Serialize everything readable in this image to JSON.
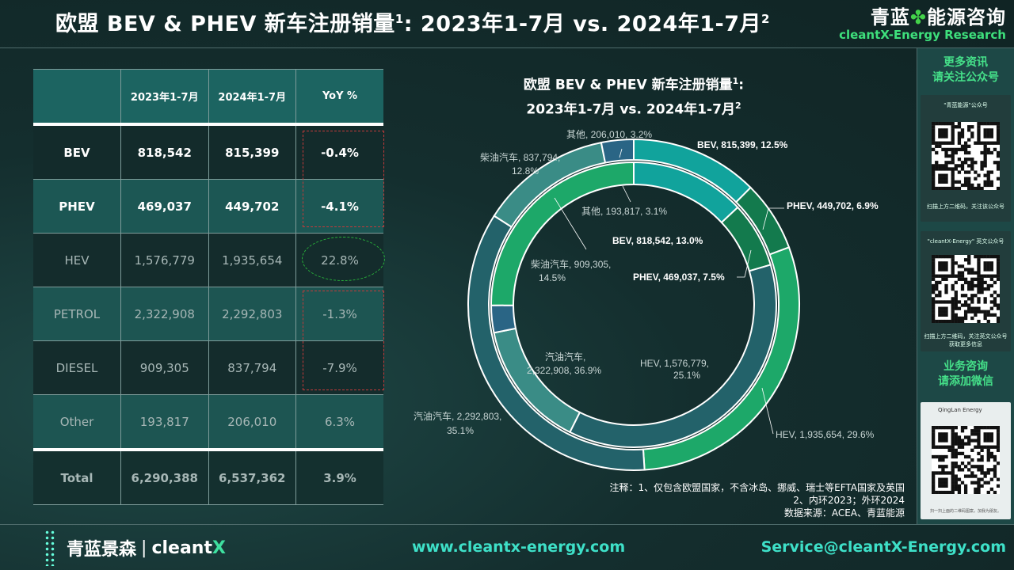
{
  "header": {
    "title_main": "欧盟 BEV & PHEV 新车注册销量",
    "title_sup": "1",
    "title_range": ": 2023年1-7月 vs. 2024年1-7月",
    "title_sup2": "2",
    "brand_cn_left": "青蓝",
    "brand_cn_right": "能源咨询",
    "brand_en": "cleantX-Energy Research"
  },
  "table": {
    "headers": [
      "",
      "2023年1-7月",
      "2024年1-7月",
      "YoY %"
    ],
    "rows": [
      [
        "BEV",
        "818,542",
        "815,399",
        "-0.4%"
      ],
      [
        "PHEV",
        "469,037",
        "449,702",
        "-4.1%"
      ],
      [
        "HEV",
        "1,576,779",
        "1,935,654",
        "22.8%"
      ],
      [
        "PETROL",
        "2,322,908",
        "2,292,803",
        "-1.3%"
      ],
      [
        "DIESEL",
        "909,305",
        "837,794",
        "-7.9%"
      ],
      [
        "Other",
        "193,817",
        "206,010",
        "6.3%"
      ],
      [
        "Total",
        "6,290,388",
        "6,537,362",
        "3.9%"
      ]
    ]
  },
  "chart_data": {
    "type": "pie",
    "title_line1": "欧盟 BEV & PHEV 新车注册销量",
    "title_line1_sup": "1",
    "title_line2": "2023年1-7月 vs. 2024年1-7月",
    "title_line2_sup": "2",
    "colors": [
      "#11a39c",
      "#137a4d",
      "#1da869",
      "#23626a",
      "#3a8c86",
      "#2a6585"
    ],
    "series": [
      {
        "ring": "inner",
        "categories": [
          "BEV",
          "PHEV",
          "汽油汽车",
          "柴油汽车",
          "其他",
          "HEV"
        ],
        "values": [
          818542,
          469037,
          2322908,
          909305,
          193817,
          1576779
        ],
        "percents": [
          13.0,
          7.5,
          36.9,
          14.5,
          3.1,
          25.1
        ]
      },
      {
        "ring": "outer",
        "categories": [
          "BEV",
          "PHEV",
          "HEV",
          "汽油汽车",
          "柴油汽车",
          "其他"
        ],
        "values": [
          815399,
          449702,
          1935654,
          2292803,
          837794,
          206010
        ],
        "percents": [
          12.5,
          6.9,
          29.6,
          35.1,
          12.8,
          3.2
        ]
      }
    ],
    "labels": {
      "outer_bev": "BEV, 815,399, 12.5%",
      "outer_phev": "PHEV, 449,702, 6.9%",
      "outer_hev": "HEV, 1,935,654, 29.6%",
      "outer_petrol_1": "汽油汽车, 2,292,803,",
      "outer_petrol_2": "35.1%",
      "outer_diesel_1": "柴油汽车, 837,794,",
      "outer_diesel_2": "12.8%",
      "outer_other": "其他, 206,010, 3.2%",
      "inner_bev": "BEV, 818,542, 13.0%",
      "inner_phev": "PHEV, 469,037, 7.5%",
      "inner_hev_1": "HEV,       1,576,779,",
      "inner_hev_2": "25.1%",
      "inner_petrol_1": "汽油汽车,",
      "inner_petrol_2": "2,322,908, 36.9%",
      "inner_diesel_1": "柴油汽车, 909,305,",
      "inner_diesel_2": "14.5%",
      "inner_other": "其他, 193,817, 3.1%"
    }
  },
  "notes": {
    "line1": "注释：1、仅包含欧盟国家，不含冰岛、挪威、瑞士等EFTA国家及英国",
    "line2": "2、内环2023；外环2024",
    "line3": "数据来源：ACEA、青蓝能源"
  },
  "sidebar": {
    "heading1_line1": "更多资讯",
    "heading1_line2": "请关注公众号",
    "card1_caption": "\"青蓝能源\"公众号",
    "card1_scan": "扫描上方二维码，关注该公众号",
    "card2_caption": "\"cleantX-Energy\" 英文公众号",
    "card2_scan": "扫描上方二维码，关注英文公众号",
    "card2_scan2": "获取更多信息",
    "heading2_line1": "业务咨询",
    "heading2_line2": "请添加微信",
    "card3_name": "QingLan Energy",
    "card3_scan": "扫一扫上面的二维码图案，加我为朋友。"
  },
  "footer": {
    "logo_cn": "青蓝景森",
    "logo_sep": "|",
    "logo_en": "cleant",
    "logo_x": "X",
    "website": "www.cleantx-energy.com",
    "email": "Service@cleantX-Energy.com"
  }
}
